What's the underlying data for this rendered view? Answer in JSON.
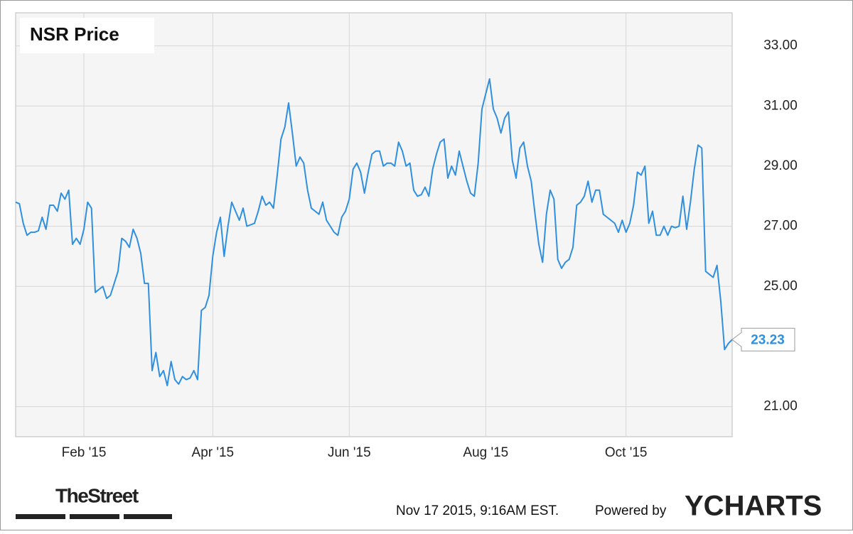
{
  "chart_data": {
    "type": "line",
    "title": "NSR Price",
    "categories": [
      null,
      null,
      null,
      null,
      null,
      null,
      null,
      null,
      null,
      null,
      null,
      null,
      null,
      null,
      null,
      null,
      null,
      null,
      "Feb '15",
      null,
      null,
      null,
      null,
      null,
      null,
      null,
      null,
      null,
      null,
      null,
      null,
      null,
      null,
      null,
      null,
      null,
      null,
      null,
      null,
      null,
      null,
      null,
      null,
      null,
      null,
      null,
      null,
      null,
      null,
      null,
      null,
      null,
      "Apr '15",
      null,
      null,
      null,
      null,
      null,
      null,
      null,
      null,
      null,
      null,
      null,
      null,
      null,
      null,
      null,
      null,
      null,
      null,
      null,
      null,
      null,
      null,
      null,
      null,
      null,
      null,
      null,
      null,
      null,
      null,
      null,
      null,
      null,
      null,
      null,
      "Jun '15",
      null,
      null,
      null,
      null,
      null,
      null,
      null,
      null,
      null,
      null,
      null,
      null,
      null,
      null,
      null,
      null,
      null,
      null,
      null,
      null,
      null,
      null,
      null,
      null,
      null,
      null,
      null,
      null,
      null,
      null,
      null,
      null,
      null,
      null,
      null,
      "Aug '15",
      null,
      null,
      null,
      null,
      null,
      null,
      null,
      null,
      null,
      null,
      null,
      null,
      null,
      null,
      null,
      null,
      null,
      null,
      null,
      null,
      null,
      null,
      null,
      null,
      null,
      null,
      null,
      null,
      null,
      null,
      null,
      null,
      null,
      null,
      null,
      null,
      "Oct '15",
      null,
      null,
      null,
      null,
      null,
      null,
      null,
      null,
      null,
      null,
      null,
      null,
      null,
      null,
      null,
      null,
      null,
      null,
      null,
      null,
      null,
      null,
      null,
      null,
      null,
      null,
      null,
      null
    ],
    "values": [
      27.8,
      27.75,
      27.1,
      26.7,
      26.8,
      26.8,
      26.85,
      27.3,
      26.9,
      27.7,
      27.7,
      27.5,
      28.1,
      27.9,
      28.2,
      26.4,
      26.6,
      26.4,
      26.9,
      27.8,
      27.6,
      24.8,
      24.9,
      25.0,
      24.6,
      24.7,
      25.1,
      25.5,
      26.6,
      26.5,
      26.3,
      26.9,
      26.6,
      26.1,
      25.1,
      25.1,
      22.2,
      22.8,
      22.0,
      22.2,
      21.7,
      22.5,
      21.9,
      21.75,
      22.0,
      21.9,
      21.95,
      22.2,
      21.9,
      24.2,
      24.3,
      24.7,
      26.0,
      26.8,
      27.3,
      26.0,
      27.0,
      27.8,
      27.5,
      27.2,
      27.6,
      27.0,
      27.05,
      27.1,
      27.5,
      28.0,
      27.7,
      27.8,
      27.6,
      28.7,
      29.9,
      30.3,
      31.1,
      30.1,
      29.0,
      29.3,
      29.1,
      28.2,
      27.6,
      27.5,
      27.4,
      27.8,
      27.2,
      27.0,
      26.8,
      26.7,
      27.3,
      27.5,
      27.9,
      28.9,
      29.1,
      28.8,
      28.1,
      28.8,
      29.4,
      29.5,
      29.5,
      29.0,
      29.1,
      29.1,
      29.0,
      29.8,
      29.5,
      29.0,
      29.1,
      28.2,
      28.0,
      28.05,
      28.3,
      28.0,
      28.9,
      29.4,
      29.8,
      29.9,
      28.6,
      29.0,
      28.7,
      29.5,
      29.0,
      28.5,
      28.1,
      28.0,
      29.1,
      30.9,
      31.4,
      31.9,
      30.9,
      30.6,
      30.1,
      30.6,
      30.8,
      29.2,
      28.6,
      29.6,
      29.8,
      29.0,
      28.5,
      27.4,
      26.4,
      25.8,
      27.4,
      28.2,
      27.9,
      25.9,
      25.6,
      25.8,
      25.9,
      26.3,
      27.7,
      27.8,
      28.0,
      28.5,
      27.8,
      28.2,
      28.2,
      27.4,
      27.3,
      27.2,
      27.1,
      26.8,
      27.2,
      26.8,
      27.1,
      27.7,
      28.8,
      28.7,
      29.0,
      27.1,
      27.5,
      26.7,
      26.7,
      27.0,
      26.7,
      27.0,
      26.95,
      27.0,
      28.0,
      26.9,
      27.8,
      28.9,
      29.7,
      29.6,
      25.5,
      25.4,
      25.3,
      25.7,
      24.5,
      22.9,
      23.1,
      23.23
    ],
    "last_label": "23.23",
    "color": "#2f8fe0",
    "ylim": [
      20,
      34.1
    ],
    "yticks": [
      {
        "value": 21,
        "label": "21.00"
      },
      {
        "value": 25,
        "label": "25.00"
      },
      {
        "value": 27,
        "label": "27.00"
      },
      {
        "value": 29,
        "label": "29.00"
      },
      {
        "value": 31,
        "label": "31.00"
      },
      {
        "value": 33,
        "label": "33.00"
      }
    ],
    "grid": true
  },
  "footer": {
    "brand": "TheStreet",
    "timestamp": "Nov 17 2015, 9:16AM EST.",
    "powered": "Powered by",
    "logo": "YCHARTS"
  }
}
